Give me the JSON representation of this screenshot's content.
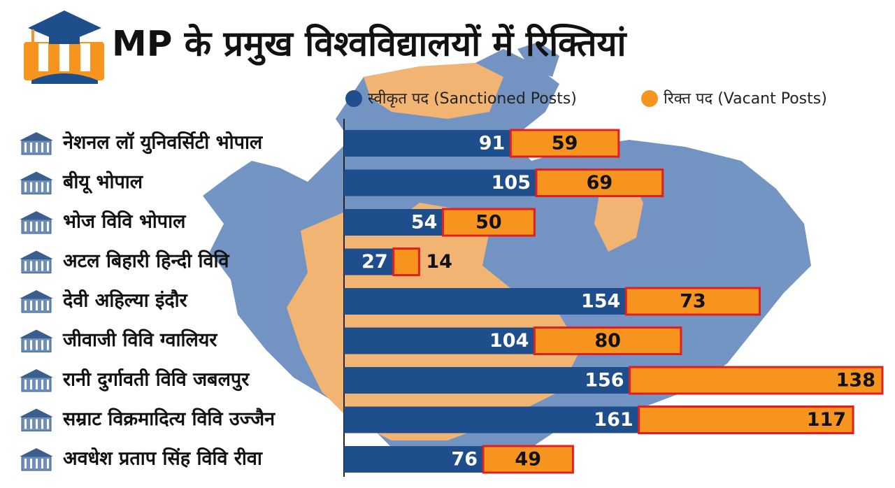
{
  "chart_data": {
    "type": "stacked-hbar",
    "title": "MP के प्रमुख विश्वविद्यालयों में रिक्तियां",
    "categories": [
      "नेशनल लॉ युनिवर्सिटी भोपाल",
      "बीयू भोपाल",
      "भोज विवि भोपाल",
      "अटल बिहारी हिन्दी विवि",
      "देवी अहिल्या इंदौर",
      "जीवाजी विवि ग्वालियर",
      "रानी दुर्गावती विवि जबलपुर",
      "सम्राट विक्रमादित्य विवि उज्जैन",
      "अवधेश प्रताप सिंह विवि रीवा"
    ],
    "series": [
      {
        "name": "स्वीकृत पद (Sanctioned Posts)",
        "color": "#1f4e8c",
        "values": [
          91,
          105,
          54,
          27,
          154,
          104,
          156,
          161,
          76
        ]
      },
      {
        "name": "रिक्त पद (Vacant Posts)",
        "color": "#f7941d",
        "values": [
          59,
          69,
          50,
          14,
          73,
          80,
          138,
          117,
          49
        ]
      }
    ]
  }
}
